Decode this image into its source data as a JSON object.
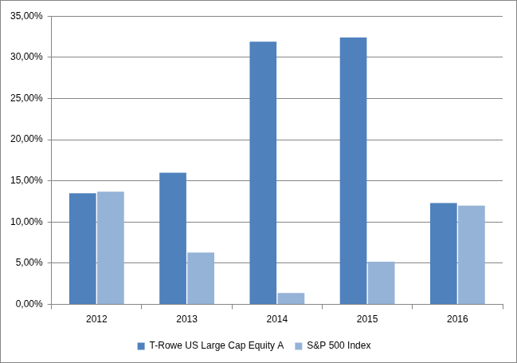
{
  "chart_data": {
    "type": "bar",
    "categories": [
      "2012",
      "2013",
      "2014",
      "2015",
      "2016"
    ],
    "series": [
      {
        "name": "T-Rowe US Large Cap Equity A",
        "color": "#4f81bd",
        "values": [
          13.5,
          16.0,
          31.9,
          32.4,
          12.3
        ]
      },
      {
        "name": "S&P 500 Index",
        "color": "#95b3d7",
        "values": [
          13.7,
          6.3,
          1.4,
          5.2,
          12.0
        ]
      }
    ],
    "ylim": [
      0,
      35
    ],
    "yticks": [
      {
        "value": 0,
        "label": "0,00%"
      },
      {
        "value": 5,
        "label": "5,00%"
      },
      {
        "value": 10,
        "label": "10,00%"
      },
      {
        "value": 15,
        "label": "15,00%"
      },
      {
        "value": 20,
        "label": "20,00%"
      },
      {
        "value": 25,
        "label": "25,00%"
      },
      {
        "value": 30,
        "label": "30,00%"
      },
      {
        "value": 35,
        "label": "35,00%"
      }
    ],
    "grid": true,
    "legend": "bottom"
  }
}
